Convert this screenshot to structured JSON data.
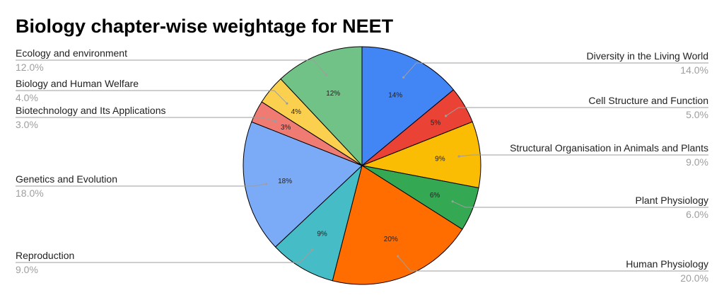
{
  "chart_data": {
    "type": "pie",
    "title": "Biology chapter-wise weightage for NEET",
    "slices": [
      {
        "label": "Diversity in the Living World",
        "value": 14,
        "pct_label": "14.0%",
        "in_label": "14%",
        "color": "#4285f4",
        "side": "right"
      },
      {
        "label": "Cell Structure and Function",
        "value": 5,
        "pct_label": "5.0%",
        "in_label": "5%",
        "color": "#ea4335",
        "side": "right"
      },
      {
        "label": "Structural Organisation in Animals and Plants",
        "value": 9,
        "pct_label": "9.0%",
        "in_label": "9%",
        "color": "#fbbc04",
        "side": "right"
      },
      {
        "label": "Plant Physiology",
        "value": 6,
        "pct_label": "6.0%",
        "in_label": "6%",
        "color": "#34a853",
        "side": "right"
      },
      {
        "label": "Human Physiology",
        "value": 20,
        "pct_label": "20.0%",
        "in_label": "20%",
        "color": "#ff6d01",
        "side": "right"
      },
      {
        "label": "Reproduction",
        "value": 9,
        "pct_label": "9.0%",
        "in_label": "9%",
        "color": "#46bdc6",
        "side": "left"
      },
      {
        "label": "Genetics and Evolution",
        "value": 18,
        "pct_label": "18.0%",
        "in_label": "18%",
        "color": "#7baaf7",
        "side": "left"
      },
      {
        "label": "Biotechnology and Its Applications",
        "value": 3,
        "pct_label": "3.0%",
        "in_label": "3%",
        "color": "#f07b72",
        "side": "left"
      },
      {
        "label": "Biology and Human Welfare",
        "value": 4,
        "pct_label": "4.0%",
        "in_label": "4%",
        "color": "#fcd04f",
        "side": "left"
      },
      {
        "label": "Ecology and environment",
        "value": 12,
        "pct_label": "12.0%",
        "in_label": "12%",
        "color": "#71c287",
        "side": "left"
      }
    ]
  }
}
